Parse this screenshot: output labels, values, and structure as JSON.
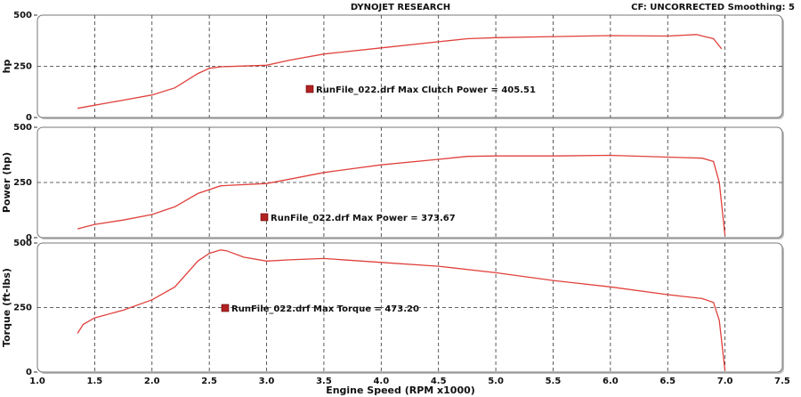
{
  "chart_data": [
    {
      "type": "line",
      "title": "DYNOJET RESEARCH",
      "subtitle": "CF: UNCORRECTED  Smoothing: 5",
      "y_label": "hp",
      "annotation": "RunFile_022.drf Max Clutch Power = 405.51",
      "color": "#e0413c",
      "xlim": [
        1,
        7.5
      ],
      "ylim": [
        0,
        500
      ],
      "yticks": [
        0,
        250,
        500
      ],
      "grid": true,
      "x": [
        1.35,
        1.5,
        1.75,
        2.0,
        2.2,
        2.4,
        2.5,
        2.6,
        3.0,
        3.2,
        3.5,
        4.0,
        4.5,
        4.75,
        5.0,
        5.5,
        6.0,
        6.5,
        6.75,
        6.9,
        6.97
      ],
      "values": [
        45,
        60,
        85,
        110,
        145,
        215,
        240,
        248,
        255,
        280,
        310,
        340,
        370,
        385,
        390,
        395,
        400,
        398,
        405,
        385,
        335
      ]
    },
    {
      "type": "line",
      "y_label": "Power (hp)",
      "annotation": "RunFile_022.drf Max Power = 373.67",
      "color": "#e0413c",
      "xlim": [
        1,
        7.5
      ],
      "ylim": [
        0,
        500
      ],
      "yticks": [
        0,
        250,
        500
      ],
      "grid": true,
      "x": [
        1.35,
        1.5,
        1.75,
        2.0,
        2.2,
        2.4,
        2.6,
        3.0,
        3.2,
        3.5,
        4.0,
        4.5,
        4.75,
        5.0,
        5.5,
        6.0,
        6.5,
        6.8,
        6.9,
        6.95,
        7.0
      ],
      "values": [
        40,
        60,
        80,
        105,
        140,
        200,
        235,
        245,
        265,
        295,
        330,
        355,
        368,
        370,
        370,
        373,
        365,
        360,
        345,
        250,
        10
      ]
    },
    {
      "type": "line",
      "y_label": "Torque (ft-lbs)",
      "annotation": "RunFile_022.drf Max Torque = 473.20",
      "x_label": "Engine Speed (RPM x1000)",
      "color": "#e0413c",
      "xlim": [
        1,
        7.5
      ],
      "ylim": [
        0,
        500
      ],
      "yticks": [
        0,
        250,
        500
      ],
      "grid": true,
      "xticks": [
        {
          "value": 1,
          "label": "1.0"
        },
        1.5,
        {
          "value": 2,
          "label": "2.0"
        },
        2.5,
        {
          "value": 3,
          "label": "3.0"
        },
        3.5,
        {
          "value": 4,
          "label": "4.0"
        },
        4.5,
        {
          "value": 5,
          "label": "5.0"
        },
        5.5,
        {
          "value": 6,
          "label": "6.0"
        },
        6.5,
        {
          "value": 7,
          "label": "7.0"
        },
        7.5
      ],
      "x": [
        1.35,
        1.4,
        1.5,
        1.75,
        2.0,
        2.2,
        2.4,
        2.5,
        2.6,
        2.65,
        2.8,
        3.0,
        3.2,
        3.5,
        4.0,
        4.5,
        5.0,
        5.5,
        6.0,
        6.5,
        6.8,
        6.9,
        6.95,
        7.0
      ],
      "values": [
        150,
        185,
        210,
        240,
        280,
        330,
        430,
        460,
        473,
        470,
        445,
        430,
        435,
        440,
        425,
        410,
        385,
        355,
        330,
        300,
        285,
        270,
        200,
        5
      ]
    }
  ]
}
